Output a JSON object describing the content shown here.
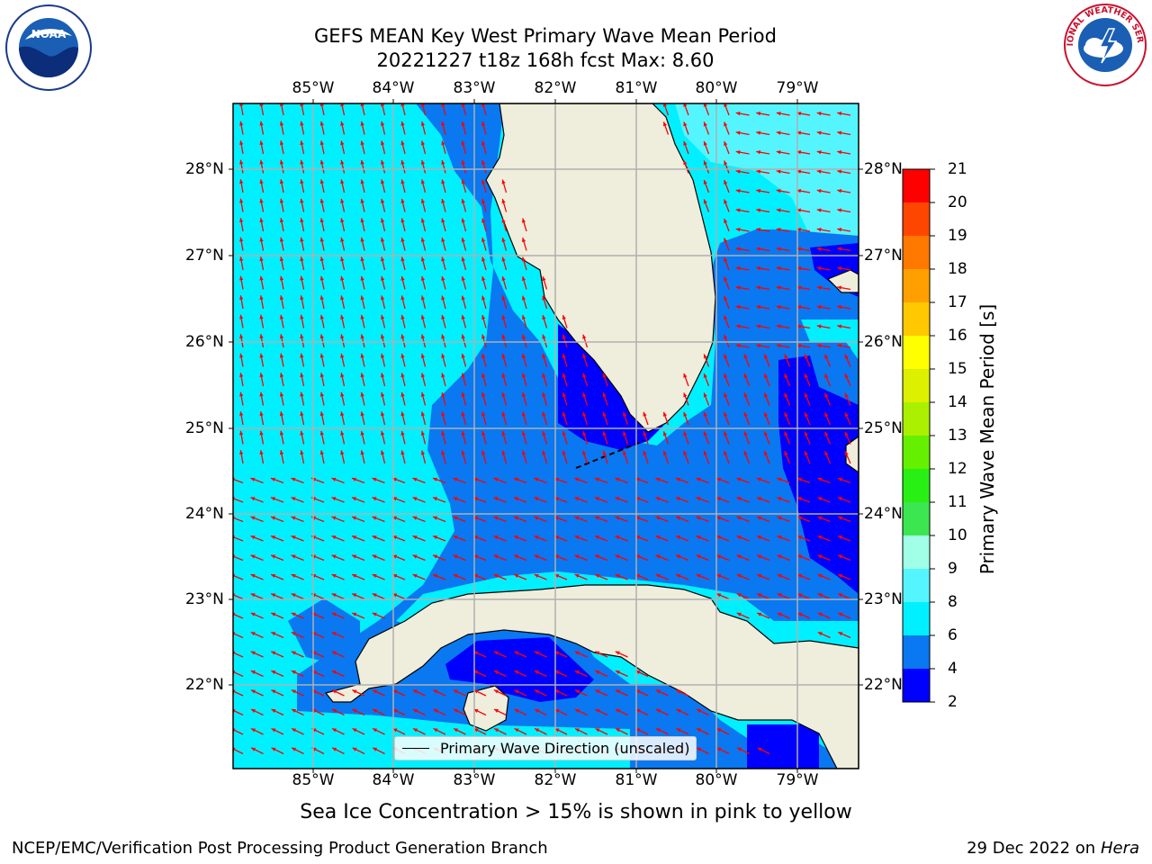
{
  "title_line1": "GEFS MEAN Key West Primary Wave Mean Period",
  "title_line2": "20221227 t18z 168h fcst   Max: 8.60",
  "logos": {
    "left": {
      "icon": "noaa-logo",
      "text": "NOAA"
    },
    "right": {
      "icon": "nws-logo",
      "text": "NATIONAL WEATHER SERVICE"
    }
  },
  "map": {
    "lon_labels": [
      "85°W",
      "84°W",
      "83°W",
      "82°W",
      "81°W",
      "80°W",
      "79°W"
    ],
    "lat_labels": [
      "28°N",
      "27°N",
      "26°N",
      "25°N",
      "24°N",
      "23°N",
      "22°N"
    ],
    "legend_label": "Primary Wave Direction (unscaled)",
    "arrow_color": "#ff0000",
    "land_color": "#efeddc"
  },
  "colorbar": {
    "label": "Primary Wave Mean Period [s]",
    "ticks": [
      "2",
      "4",
      "6",
      "8",
      "9",
      "10",
      "11",
      "12",
      "13",
      "14",
      "15",
      "16",
      "17",
      "18",
      "19",
      "20",
      "21"
    ],
    "bands": [
      {
        "from": 2,
        "to": 4,
        "color": "#0000ff"
      },
      {
        "from": 4,
        "to": 6,
        "color": "#0a78f0"
      },
      {
        "from": 6,
        "to": 8,
        "color": "#00f0ff"
      },
      {
        "from": 8,
        "to": 9,
        "color": "#55f5ff"
      },
      {
        "from": 9,
        "to": 10,
        "color": "#a0ffe6"
      },
      {
        "from": 10,
        "to": 11,
        "color": "#3ce650"
      },
      {
        "from": 11,
        "to": 12,
        "color": "#28f014"
      },
      {
        "from": 12,
        "to": 13,
        "color": "#64f000"
      },
      {
        "from": 13,
        "to": 14,
        "color": "#aaf000"
      },
      {
        "from": 14,
        "to": 15,
        "color": "#dcf000"
      },
      {
        "from": 15,
        "to": 16,
        "color": "#ffff00"
      },
      {
        "from": 16,
        "to": 17,
        "color": "#ffc800"
      },
      {
        "from": 17,
        "to": 18,
        "color": "#ffa000"
      },
      {
        "from": 18,
        "to": 19,
        "color": "#ff7800"
      },
      {
        "from": 19,
        "to": 20,
        "color": "#ff4600"
      },
      {
        "from": 20,
        "to": 21,
        "color": "#ff0000"
      }
    ]
  },
  "sea_ice_note": "Sea Ice Concentration > 15% is shown in pink to yellow",
  "credit_left": "NCEP/EMC/Verification Post Processing Product Generation Branch",
  "credit_date": "29 Dec 2022 on",
  "credit_machine": "Hera"
}
